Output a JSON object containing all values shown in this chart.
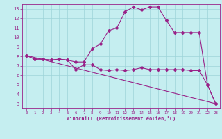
{
  "xlabel": "Windchill (Refroidissement éolien,°C)",
  "xlim": [
    -0.5,
    23.5
  ],
  "ylim": [
    2.5,
    13.5
  ],
  "yticks": [
    3,
    4,
    5,
    6,
    7,
    8,
    9,
    10,
    11,
    12,
    13
  ],
  "xticks": [
    0,
    1,
    2,
    3,
    4,
    5,
    6,
    7,
    8,
    9,
    10,
    11,
    12,
    13,
    14,
    15,
    16,
    17,
    18,
    19,
    20,
    21,
    22,
    23
  ],
  "background_color": "#c5eef0",
  "grid_color": "#9dd4d8",
  "line_color": "#992288",
  "line1_x": [
    0,
    1,
    2,
    3,
    4,
    5,
    6,
    7,
    8,
    9,
    10,
    11,
    12,
    13,
    14,
    15,
    16,
    17,
    18,
    19,
    20,
    21,
    22,
    23
  ],
  "line1_y": [
    8.1,
    7.7,
    7.7,
    7.6,
    7.7,
    7.6,
    6.6,
    7.1,
    7.1,
    6.6,
    6.5,
    6.6,
    6.5,
    6.6,
    6.8,
    6.6,
    6.6,
    6.6,
    6.6,
    6.6,
    6.5,
    6.5,
    5.0,
    3.0
  ],
  "line2_x": [
    0,
    1,
    2,
    3,
    4,
    5,
    6,
    7,
    8,
    9,
    10,
    11,
    12,
    13,
    14,
    15,
    16,
    17,
    18,
    19,
    20,
    21,
    22,
    23
  ],
  "line2_y": [
    8.1,
    7.7,
    7.7,
    7.6,
    7.7,
    7.6,
    7.4,
    7.4,
    8.8,
    9.3,
    10.7,
    11.0,
    12.7,
    13.2,
    12.9,
    13.2,
    13.2,
    11.8,
    10.5,
    10.5,
    10.5,
    10.5,
    5.0,
    3.0
  ],
  "line3_x": [
    0,
    23
  ],
  "line3_y": [
    8.1,
    3.0
  ]
}
